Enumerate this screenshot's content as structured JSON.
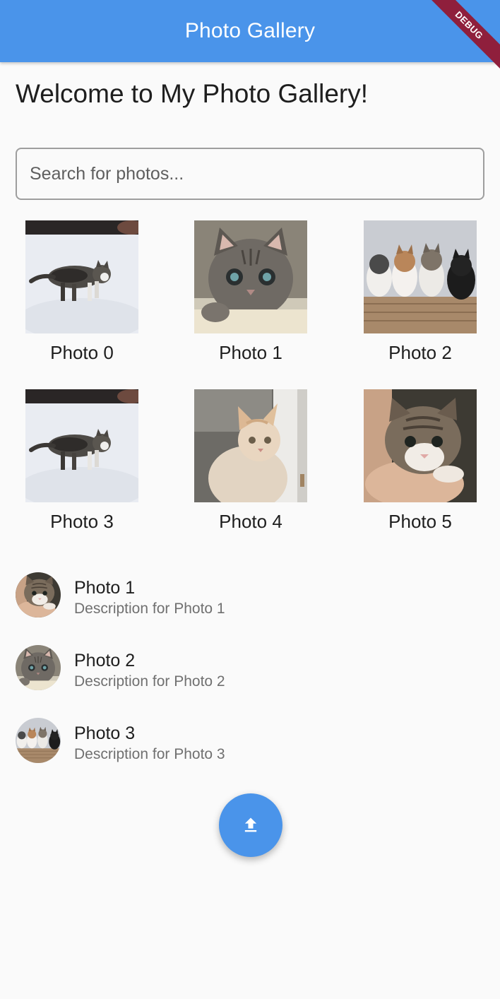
{
  "app_bar": {
    "title": "Photo Gallery",
    "debug_banner": "DEBUG",
    "color": "#4a94ea"
  },
  "heading": "Welcome to My Photo Gallery!",
  "search": {
    "placeholder": "Search for photos...",
    "value": ""
  },
  "grid": {
    "photos": [
      {
        "label": "Photo 0",
        "image": "gray tabby kitten walking in snow"
      },
      {
        "label": "Photo 1",
        "image": "gray tabby kitten close-up"
      },
      {
        "label": "Photo 2",
        "image": "four kittens in a basket"
      },
      {
        "label": "Photo 3",
        "image": "gray tabby kitten walking in snow"
      },
      {
        "label": "Photo 4",
        "image": "cream kitten by a door"
      },
      {
        "label": "Photo 5",
        "image": "tabby kitten held in a hand"
      }
    ]
  },
  "list": {
    "items": [
      {
        "title": "Photo 1",
        "subtitle": "Description for Photo 1"
      },
      {
        "title": "Photo 2",
        "subtitle": "Description for Photo 2"
      },
      {
        "title": "Photo 3",
        "subtitle": "Description for Photo 3"
      }
    ]
  },
  "fab": {
    "icon": "upload-icon"
  }
}
